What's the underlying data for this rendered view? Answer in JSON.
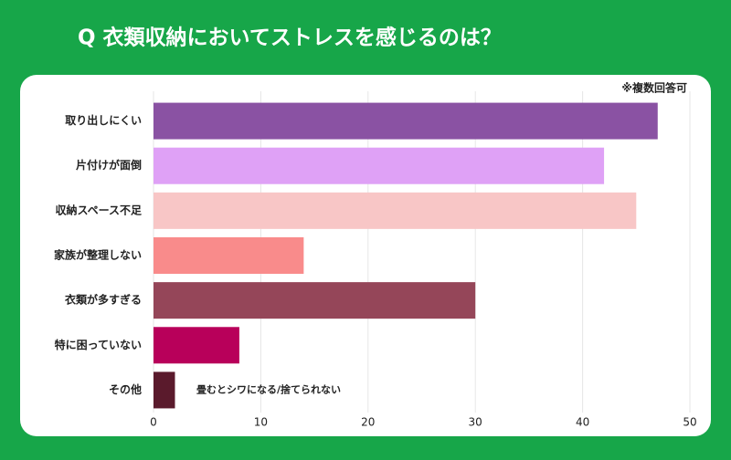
{
  "chart_data": {
    "type": "bar",
    "orientation": "horizontal",
    "title": "Q 衣類収納においてストレスを感じるのは？",
    "note": "※複数回答可",
    "categories": [
      "取り出しにくい",
      "片付けが面倒",
      "収納スペース不足",
      "家族が整理しない",
      "衣類が多すぎる",
      "特に困っていない",
      "その他"
    ],
    "values": [
      47,
      42,
      45,
      14,
      30,
      8,
      2
    ],
    "colors": [
      "#8a52a3",
      "#dfa1f6",
      "#f8c6c6",
      "#f98b8b",
      "#954659",
      "#b8005a",
      "#5a1a2c"
    ],
    "annotation": "畳むとシワになる/捨てられない",
    "xlim": [
      0,
      50
    ],
    "xticks": [
      0,
      10,
      20,
      30,
      40,
      50
    ],
    "grid": true
  }
}
